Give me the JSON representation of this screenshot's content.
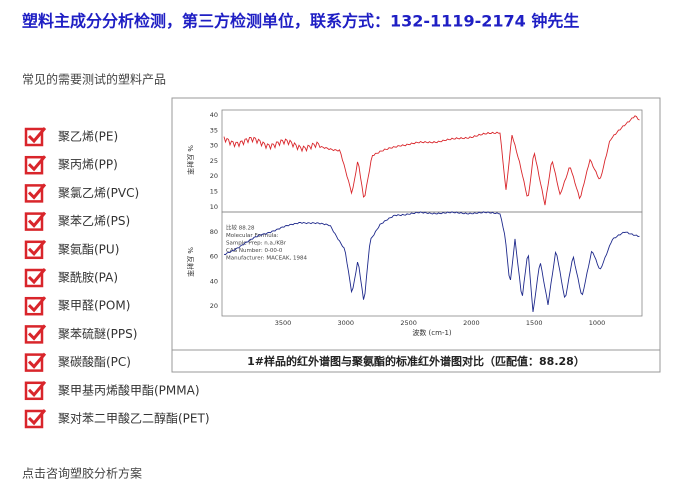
{
  "header": {
    "title": "塑料主成分分析检测，第三方检测单位，联系方式：132-1119-2174  钟先生"
  },
  "section_title": "常见的需要测试的塑料产品",
  "products": [
    "聚乙烯(PE)",
    "聚丙烯(PP)",
    "聚氯乙烯(PVC)",
    "聚苯乙烯(PS)",
    "聚氨酯(PU)",
    "聚酰胺(PA)",
    "聚甲醛(POM)",
    "聚苯硫醚(PPS)",
    "聚碳酸酯(PC)",
    "聚甲基丙烯酸甲酯(PMMA)",
    "聚对苯二甲酸乙二醇酯(PET)"
  ],
  "figure": {
    "y_label": "% 反射率",
    "x_label": "波数 (cm-1)",
    "top_yticks": [
      "40",
      "35",
      "30",
      "25",
      "20",
      "15",
      "10"
    ],
    "bottom_yticks": [
      "80",
      "60",
      "40",
      "20"
    ],
    "xticks": [
      "3500",
      "3000",
      "2500",
      "2000",
      "1500",
      "1000"
    ],
    "annotation": [
      "比较 88.28",
      "Molecular Formula:",
      "Sample Prep: n.a./KBr",
      "CAS Number: 0-00-0",
      "Manufacturer: MACEAK, 1984"
    ],
    "caption": "1#样品的红外谱图与聚氨酯的标准红外谱图对比（匹配值：88.28）"
  },
  "footer_link": "点击咨询塑胶分析方案"
}
